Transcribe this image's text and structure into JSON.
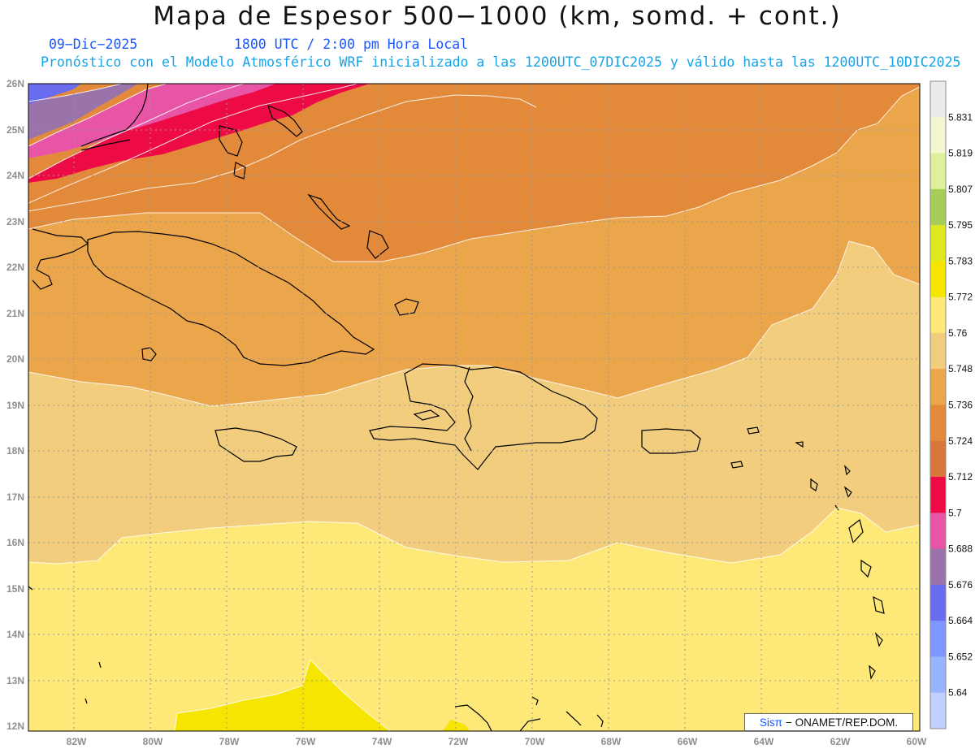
{
  "header": {
    "title": "Mapa de Espesor 500−1000 (km, somd. + cont.)",
    "date": "09−Dic−2025",
    "time": "1800 UTC / 2:00 pm Hora Local",
    "model_line": "Pronóstico con el Modelo Atmosférico WRF inicializado a las 1200UTC_07DIC2025 y válido hasta las  1200UTC_10DIC2025"
  },
  "axes": {
    "lat_labels": [
      "26N",
      "25N",
      "24N",
      "23N",
      "22N",
      "21N",
      "20N",
      "19N",
      "18N",
      "17N",
      "16N",
      "15N",
      "14N",
      "13N",
      "12N"
    ],
    "lon_labels": [
      "82W",
      "80W",
      "78W",
      "76W",
      "74W",
      "72W",
      "70W",
      "68W",
      "66W",
      "64W",
      "62W",
      "60W"
    ]
  },
  "colorbar": {
    "levels": [
      "5.831",
      "5.819",
      "5.807",
      "5.795",
      "5.783",
      "5.772",
      "5.76",
      "5.748",
      "5.736",
      "5.724",
      "5.712",
      "5.7",
      "5.688",
      "5.676",
      "5.664",
      "5.652",
      "5.64"
    ],
    "colors": [
      "#ebebeb",
      "#f3f6cf",
      "#dff09a",
      "#a6cc5a",
      "#dde81e",
      "#f5e500",
      "#fde878",
      "#f2cd7e",
      "#eba54b",
      "#e38a3a",
      "#d9773a",
      "#ee0a45",
      "#e855a6",
      "#9a73ab",
      "#6a6cf0",
      "#7f95ff",
      "#98b4ff",
      "#c1d0ff"
    ]
  },
  "bands": {
    "c5640": "#98b4ff",
    "c5664": "#6a6cf0",
    "c5676": "#9a73ab",
    "c5688": "#e855a6",
    "c5700": "#ee0a45",
    "c5712": "#d9773a",
    "c5724": "#e38a3a",
    "c5736": "#eba54b",
    "c5748": "#f2cd7e",
    "c5760": "#fde878",
    "c5772": "#f5e500"
  },
  "credit": {
    "sis": "Sisπ",
    "text": "− ONAMET/REP.DOM."
  }
}
